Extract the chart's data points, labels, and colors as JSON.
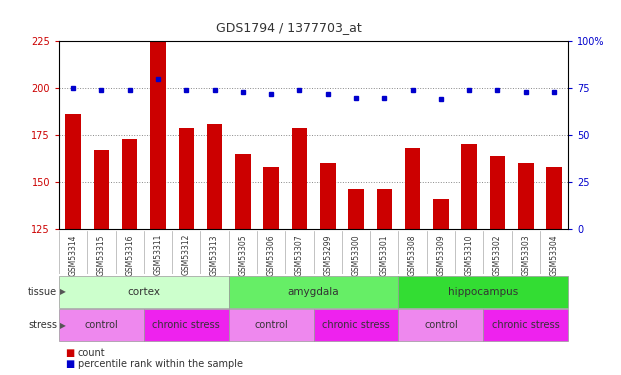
{
  "title": "GDS1794 / 1377703_at",
  "samples": [
    "GSM53314",
    "GSM53315",
    "GSM53316",
    "GSM53311",
    "GSM53312",
    "GSM53313",
    "GSM53305",
    "GSM53306",
    "GSM53307",
    "GSM53299",
    "GSM53300",
    "GSM53301",
    "GSM53308",
    "GSM53309",
    "GSM53310",
    "GSM53302",
    "GSM53303",
    "GSM53304"
  ],
  "counts": [
    186,
    167,
    173,
    226,
    179,
    181,
    165,
    158,
    179,
    160,
    146,
    146,
    168,
    141,
    170,
    164,
    160,
    158
  ],
  "percentiles": [
    75,
    74,
    74,
    80,
    74,
    74,
    73,
    72,
    74,
    72,
    70,
    70,
    74,
    69,
    74,
    74,
    73,
    73
  ],
  "ylim_left": [
    125,
    225
  ],
  "ylim_right": [
    0,
    100
  ],
  "yticks_left": [
    125,
    150,
    175,
    200,
    225
  ],
  "yticks_right": [
    0,
    25,
    50,
    75,
    100
  ],
  "bar_color": "#cc0000",
  "dot_color": "#0000cc",
  "tissue_groups": [
    {
      "label": "cortex",
      "start": 0,
      "end": 6,
      "color": "#ccffcc"
    },
    {
      "label": "amygdala",
      "start": 6,
      "end": 12,
      "color": "#66ee66"
    },
    {
      "label": "hippocampus",
      "start": 12,
      "end": 18,
      "color": "#33dd33"
    }
  ],
  "stress_groups": [
    {
      "label": "control",
      "start": 0,
      "end": 3,
      "color": "#ee88ee"
    },
    {
      "label": "chronic stress",
      "start": 3,
      "end": 6,
      "color": "#ee22ee"
    },
    {
      "label": "control",
      "start": 6,
      "end": 9,
      "color": "#ee88ee"
    },
    {
      "label": "chronic stress",
      "start": 9,
      "end": 12,
      "color": "#ee22ee"
    },
    {
      "label": "control",
      "start": 12,
      "end": 15,
      "color": "#ee88ee"
    },
    {
      "label": "chronic stress",
      "start": 15,
      "end": 18,
      "color": "#ee22ee"
    }
  ],
  "bar_bottom": 125,
  "grid_color": "#888888",
  "tick_color_left": "#cc0000",
  "tick_color_right": "#0000cc",
  "label_bg": "#d0d0d0"
}
